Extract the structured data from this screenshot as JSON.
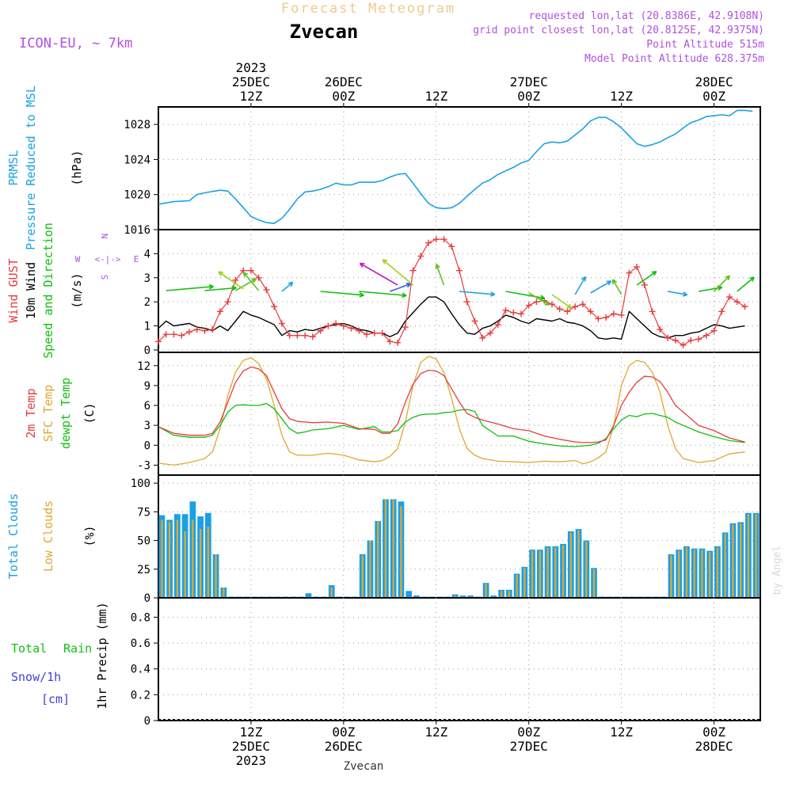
{
  "header": {
    "product": "Forecast Meteogram",
    "location": "Zvecan",
    "model": "ICON-EU, ~ 7km",
    "requested": "requested lon,lat (20.8386E, 42.9108N)",
    "grid_point": "grid point closest lon,lat (20.8125E, 42.9375N)",
    "point_altitude": "Point Altitude 515m",
    "model_altitude": "Model Point Altitude 628.375m",
    "footer_location": "Zvecan",
    "credit": "by Angel"
  },
  "colors": {
    "pressure": "#1aa0e6",
    "gust": "#e83c3c",
    "wind": "#000000",
    "direction": "#10c010",
    "temp2m": "#e83c3c",
    "sfc": "#e0a830",
    "dewpt": "#10c010",
    "total_clouds": "#1aa0e6",
    "low_clouds": "#e0a830",
    "rain": "#10c010",
    "snow": "#4040e0",
    "compass": "#b050e0"
  },
  "time_axis": {
    "top_labels": [
      {
        "x": 12,
        "lines": [
          "2023",
          "25DEC",
          "12Z"
        ]
      },
      {
        "x": 24,
        "lines": [
          "26DEC",
          "00Z"
        ]
      },
      {
        "x": 36,
        "lines": [
          "12Z"
        ]
      },
      {
        "x": 48,
        "lines": [
          "27DEC",
          "00Z"
        ]
      },
      {
        "x": 60,
        "lines": [
          "12Z"
        ]
      },
      {
        "x": 72,
        "lines": [
          "28DEC",
          "00Z"
        ]
      }
    ],
    "bottom_labels": [
      {
        "x": 12,
        "lines": [
          "12Z",
          "25DEC",
          "2023"
        ]
      },
      {
        "x": 24,
        "lines": [
          "00Z",
          "26DEC"
        ]
      },
      {
        "x": 36,
        "lines": [
          "12Z"
        ]
      },
      {
        "x": 48,
        "lines": [
          "00Z",
          "27DEC"
        ]
      },
      {
        "x": 60,
        "lines": [
          "12Z"
        ]
      },
      {
        "x": 72,
        "lines": [
          "00Z",
          "28DEC"
        ]
      }
    ]
  },
  "panels": {
    "pressure": {
      "labels": [
        {
          "text": "PRMSL",
          "color": "#1aa0e6"
        },
        {
          "text": "Pressure Reduced to MSL",
          "color": "#1aa0e6"
        },
        {
          "text": "(hPa)",
          "color": "#000000"
        }
      ],
      "yticks": [
        "1016",
        "1020",
        "1024",
        "1028"
      ]
    },
    "wind": {
      "labels": [
        {
          "text": "Wind GUST",
          "color": "#e83c3c"
        },
        {
          "text": "10m Wind",
          "color": "#000000"
        },
        {
          "text": "Speed and Direction",
          "color": "#10c010"
        },
        {
          "text": "(m/s)",
          "color": "#000000"
        }
      ],
      "yticks": [
        "0",
        "1",
        "2",
        "3",
        "4"
      ],
      "compass": {
        "n": "N",
        "w": "W",
        "e": "E",
        "s": "S",
        "arrows": "<-|->"
      }
    },
    "temp": {
      "labels": [
        {
          "text": "2m Temp",
          "color": "#e83c3c"
        },
        {
          "text": "SFC Temp",
          "color": "#e0a830"
        },
        {
          "text": "dewpt Temp",
          "color": "#10c010"
        },
        {
          "text": "(C)",
          "color": "#000000"
        }
      ],
      "yticks": [
        "-3",
        "0",
        "3",
        "6",
        "9",
        "12"
      ]
    },
    "clouds": {
      "labels": [
        {
          "text": "Total Clouds",
          "color": "#1aa0e6"
        },
        {
          "text": "Low Clouds",
          "color": "#e0a830"
        },
        {
          "text": "(%)",
          "color": "#000000"
        }
      ],
      "yticks": [
        "0",
        "25",
        "50",
        "75",
        "100"
      ]
    },
    "precip": {
      "labels": [
        {
          "text": "Total",
          "color": "#10c010"
        },
        {
          "text": "Rain",
          "color": "#10c010"
        },
        {
          "text": "Snow/1h",
          "color": "#4040e0"
        },
        {
          "text": "[cm]",
          "color": "#4040e0"
        },
        {
          "text": "1hr Precip (mm)",
          "color": "#000000"
        }
      ],
      "yticks": [
        "0",
        "0.2",
        "0.4",
        "0.6",
        "0.8"
      ]
    }
  },
  "chart_data": [
    {
      "type": "line",
      "name": "PRMSL",
      "ylabel": "(hPa)",
      "xlim": [
        0,
        78
      ],
      "ylim": [
        1016,
        1030
      ],
      "x": [
        0,
        2,
        4,
        5,
        6,
        8,
        9,
        10,
        11,
        12,
        13,
        14,
        15,
        16,
        17,
        18,
        19,
        20,
        21,
        22,
        23,
        24,
        25,
        26,
        27,
        28,
        29,
        30,
        31,
        32,
        33,
        34,
        35,
        36,
        37,
        38,
        39,
        40,
        41,
        42,
        43,
        44,
        45,
        46,
        47,
        48,
        49,
        50,
        51,
        52,
        53,
        54,
        55,
        56,
        57,
        58,
        59,
        60,
        61,
        62,
        63,
        64,
        65,
        66,
        67,
        68,
        69,
        70,
        71,
        72,
        73,
        74,
        75,
        76,
        77
      ],
      "series": [
        {
          "name": "PRMSL",
          "values": [
            1018.9,
            1019.2,
            1019.3,
            1020.0,
            1020.2,
            1020.5,
            1020.4,
            1019.5,
            1018.5,
            1017.5,
            1017.1,
            1016.8,
            1016.7,
            1017.3,
            1018.3,
            1019.5,
            1020.3,
            1020.4,
            1020.6,
            1020.9,
            1021.3,
            1021.1,
            1021.1,
            1021.4,
            1021.4,
            1021.4,
            1021.6,
            1022.0,
            1022.3,
            1022.4,
            1021.3,
            1020.1,
            1019.0,
            1018.5,
            1018.4,
            1018.5,
            1019.0,
            1019.8,
            1020.6,
            1021.3,
            1021.7,
            1022.3,
            1022.7,
            1023.1,
            1023.6,
            1023.9,
            1024.9,
            1025.8,
            1026.0,
            1025.9,
            1026.1,
            1026.8,
            1027.5,
            1028.4,
            1028.8,
            1028.8,
            1028.3,
            1027.6,
            1026.7,
            1025.8,
            1025.5,
            1025.7,
            1026.0,
            1026.5,
            1026.9,
            1027.6,
            1028.2,
            1028.5,
            1028.9,
            1029.0,
            1029.1,
            1029.0,
            1029.6,
            1029.6,
            1029.5
          ]
        }
      ]
    },
    {
      "type": "line",
      "name": "Wind",
      "ylabel": "(m/s)",
      "xlim": [
        0,
        78
      ],
      "ylim": [
        -0.1,
        5.0
      ],
      "x": [
        0,
        1,
        2,
        3,
        4,
        5,
        6,
        7,
        8,
        9,
        10,
        11,
        12,
        13,
        14,
        15,
        16,
        17,
        18,
        19,
        20,
        21,
        22,
        23,
        24,
        25,
        26,
        27,
        28,
        29,
        30,
        31,
        32,
        33,
        34,
        35,
        36,
        37,
        38,
        39,
        40,
        41,
        42,
        43,
        44,
        45,
        46,
        47,
        48,
        49,
        50,
        51,
        52,
        53,
        54,
        55,
        56,
        57,
        58,
        59,
        60,
        61,
        62,
        63,
        64,
        65,
        66,
        67,
        68,
        69,
        70,
        71,
        72,
        73,
        74,
        75,
        76
      ],
      "series": [
        {
          "name": "Wind GUST",
          "values": [
            0.35,
            0.65,
            0.65,
            0.6,
            0.75,
            0.85,
            0.8,
            0.85,
            1.6,
            2.0,
            2.9,
            3.3,
            3.3,
            3.0,
            2.5,
            1.8,
            1.1,
            0.6,
            0.6,
            0.6,
            0.55,
            0.8,
            1.0,
            1.1,
            1.0,
            0.9,
            0.8,
            0.65,
            0.7,
            0.7,
            0.35,
            0.3,
            0.95,
            3.3,
            3.9,
            4.45,
            4.6,
            4.6,
            4.3,
            3.3,
            2.0,
            1.2,
            0.5,
            0.7,
            1.05,
            1.65,
            1.55,
            1.5,
            1.85,
            2.0,
            2.05,
            1.9,
            1.7,
            1.6,
            1.8,
            1.9,
            1.6,
            1.3,
            1.35,
            1.5,
            1.45,
            3.2,
            3.45,
            2.7,
            1.6,
            0.85,
            0.5,
            0.4,
            0.2,
            0.4,
            0.45,
            0.6,
            0.8,
            1.6,
            2.2,
            2.0,
            1.8
          ]
        },
        {
          "name": "10m Wind",
          "values": [
            0.9,
            1.2,
            1.0,
            1.05,
            1.1,
            0.95,
            0.9,
            0.8,
            1.0,
            0.8,
            1.2,
            1.6,
            1.45,
            1.35,
            1.2,
            1.05,
            0.6,
            0.8,
            0.75,
            0.85,
            0.8,
            0.9,
            1.0,
            1.05,
            1.1,
            1.0,
            0.85,
            0.8,
            0.7,
            0.7,
            0.55,
            0.7,
            1.2,
            1.55,
            1.9,
            2.2,
            2.2,
            2.0,
            1.5,
            1.05,
            0.7,
            0.65,
            0.9,
            1.0,
            1.2,
            1.45,
            1.35,
            1.2,
            1.1,
            1.3,
            1.25,
            1.2,
            1.3,
            1.15,
            1.1,
            1.0,
            0.8,
            0.5,
            0.45,
            0.5,
            0.45,
            1.6,
            1.3,
            1.0,
            0.7,
            0.55,
            0.5,
            0.6,
            0.6,
            0.7,
            0.75,
            0.9,
            1.05,
            1.0,
            0.9,
            0.95,
            1.0
          ]
        }
      ]
    },
    {
      "type": "line",
      "name": "Temperature",
      "ylabel": "(C)",
      "xlim": [
        0,
        78
      ],
      "ylim": [
        -4.5,
        14.0
      ],
      "x": [
        0,
        2,
        4,
        6,
        7,
        8,
        9,
        10,
        11,
        12,
        13,
        14,
        15,
        16,
        17,
        18,
        19,
        20,
        22,
        24,
        26,
        28,
        29,
        30,
        31,
        32,
        33,
        34,
        35,
        36,
        37,
        38,
        39,
        40,
        41,
        42,
        44,
        46,
        48,
        50,
        52,
        54,
        55,
        56,
        57,
        58,
        59,
        60,
        61,
        62,
        63,
        64,
        65,
        66,
        67,
        68,
        70,
        72,
        74,
        76
      ],
      "series": [
        {
          "name": "2m Temp",
          "values": [
            2.8,
            1.8,
            1.5,
            1.5,
            1.8,
            3.5,
            6.5,
            9.5,
            11.2,
            11.8,
            11.5,
            10.5,
            8.0,
            5.5,
            4.0,
            3.6,
            3.5,
            3.4,
            3.5,
            3.3,
            2.5,
            2.4,
            1.8,
            1.8,
            3.2,
            6.5,
            9.2,
            10.8,
            11.3,
            11.2,
            10.5,
            8.5,
            6.5,
            4.8,
            4.2,
            3.8,
            3.2,
            2.5,
            2.2,
            1.4,
            0.9,
            0.5,
            0.4,
            0.4,
            0.5,
            0.8,
            3.0,
            6.0,
            8.0,
            9.5,
            10.4,
            10.3,
            9.6,
            8.0,
            6.0,
            5.0,
            3.0,
            2.2,
            1.1,
            0.5
          ]
        },
        {
          "name": "SFC Temp",
          "values": [
            -2.7,
            -3.0,
            -2.6,
            -2.0,
            -1.0,
            2.5,
            7.5,
            11.0,
            12.8,
            13.2,
            12.3,
            10.0,
            6.0,
            1.5,
            -1.0,
            -1.5,
            -1.5,
            -1.5,
            -1.2,
            -1.5,
            -2.2,
            -2.5,
            -2.3,
            -1.7,
            -0.5,
            3.5,
            9.0,
            12.5,
            13.4,
            13.0,
            11.0,
            7.0,
            2.5,
            -0.5,
            -1.5,
            -2.0,
            -2.4,
            -2.5,
            -2.6,
            -2.4,
            -2.5,
            -2.3,
            -2.8,
            -2.5,
            -1.9,
            -1.0,
            3.0,
            9.0,
            12.0,
            12.8,
            12.5,
            11.0,
            8.0,
            3.0,
            -0.5,
            -2.0,
            -2.6,
            -2.3,
            -1.3,
            -1.0
          ]
        },
        {
          "name": "dewpt Temp",
          "values": [
            2.8,
            1.5,
            1.2,
            1.2,
            1.5,
            3.0,
            5.0,
            6.0,
            6.1,
            6.0,
            6.0,
            6.3,
            5.5,
            4.0,
            2.5,
            1.8,
            2.0,
            2.3,
            2.5,
            3.0,
            2.4,
            2.8,
            2.0,
            2.0,
            2.2,
            3.5,
            4.2,
            4.6,
            4.7,
            4.7,
            4.9,
            5.0,
            5.3,
            5.4,
            5.1,
            3.0,
            1.4,
            1.4,
            0.6,
            0.2,
            -0.1,
            -0.2,
            -0.1,
            0.0,
            0.3,
            1.0,
            2.5,
            3.8,
            4.5,
            4.3,
            4.7,
            4.8,
            4.5,
            4.2,
            3.5,
            3.0,
            2.0,
            1.3,
            0.7,
            0.4
          ]
        }
      ]
    },
    {
      "type": "bar",
      "name": "Clouds",
      "ylabel": "(%)",
      "xlim": [
        0,
        78
      ],
      "ylim": [
        0,
        107
      ],
      "x": [
        0,
        1,
        2,
        3,
        4,
        5,
        6,
        7,
        8,
        9,
        10,
        11,
        12,
        13,
        14,
        15,
        16,
        17,
        18,
        19,
        20,
        21,
        22,
        23,
        24,
        25,
        26,
        27,
        28,
        29,
        30,
        31,
        32,
        33,
        34,
        35,
        36,
        37,
        38,
        39,
        40,
        41,
        42,
        43,
        44,
        45,
        46,
        47,
        48,
        49,
        50,
        51,
        52,
        53,
        54,
        55,
        56,
        57,
        58,
        59,
        60,
        61,
        62,
        63,
        64,
        65,
        66,
        67,
        68,
        69,
        70,
        71,
        72,
        73,
        74,
        75,
        76,
        77
      ],
      "series": [
        {
          "name": "Total Clouds",
          "values": [
            72,
            68,
            73,
            73,
            84,
            71,
            74,
            38,
            9,
            1,
            1,
            1,
            1,
            1,
            1,
            1,
            1,
            1,
            1,
            4,
            1,
            1,
            11,
            1,
            1,
            1,
            38,
            50,
            67,
            86,
            86,
            84,
            6,
            2,
            1,
            1,
            1,
            1,
            3,
            2,
            2,
            1,
            13,
            2,
            7,
            7,
            21,
            27,
            42,
            42,
            45,
            45,
            47,
            58,
            60,
            50,
            26,
            1,
            1,
            1,
            1,
            1,
            1,
            1,
            1,
            1,
            38,
            42,
            45,
            43,
            43,
            41,
            45,
            57,
            65,
            66,
            74,
            74
          ]
        },
        {
          "name": "Low Clouds",
          "values": [
            68,
            66,
            68,
            58,
            68,
            60,
            62,
            38,
            9,
            0,
            0,
            0,
            0,
            0,
            0,
            0,
            0,
            0,
            0,
            0,
            0,
            0,
            9,
            0,
            0,
            0,
            37,
            50,
            67,
            86,
            86,
            80,
            0,
            0,
            0,
            0,
            0,
            0,
            2,
            1,
            1,
            0,
            12,
            1,
            6,
            6,
            20,
            26,
            41,
            41,
            44,
            44,
            46,
            57,
            59,
            49,
            25,
            0,
            0,
            0,
            0,
            0,
            0,
            0,
            0,
            0,
            37,
            41,
            44,
            42,
            42,
            40,
            44,
            56,
            64,
            65,
            73,
            73
          ]
        }
      ]
    },
    {
      "type": "bar",
      "name": "Precipitation",
      "ylabel": "1hr Precip (mm)",
      "xlim": [
        0,
        78
      ],
      "ylim": [
        0,
        0.95
      ],
      "x": [],
      "series": [
        {
          "name": "Total Rain",
          "values": []
        },
        {
          "name": "Snow/1h",
          "values": []
        }
      ]
    }
  ]
}
